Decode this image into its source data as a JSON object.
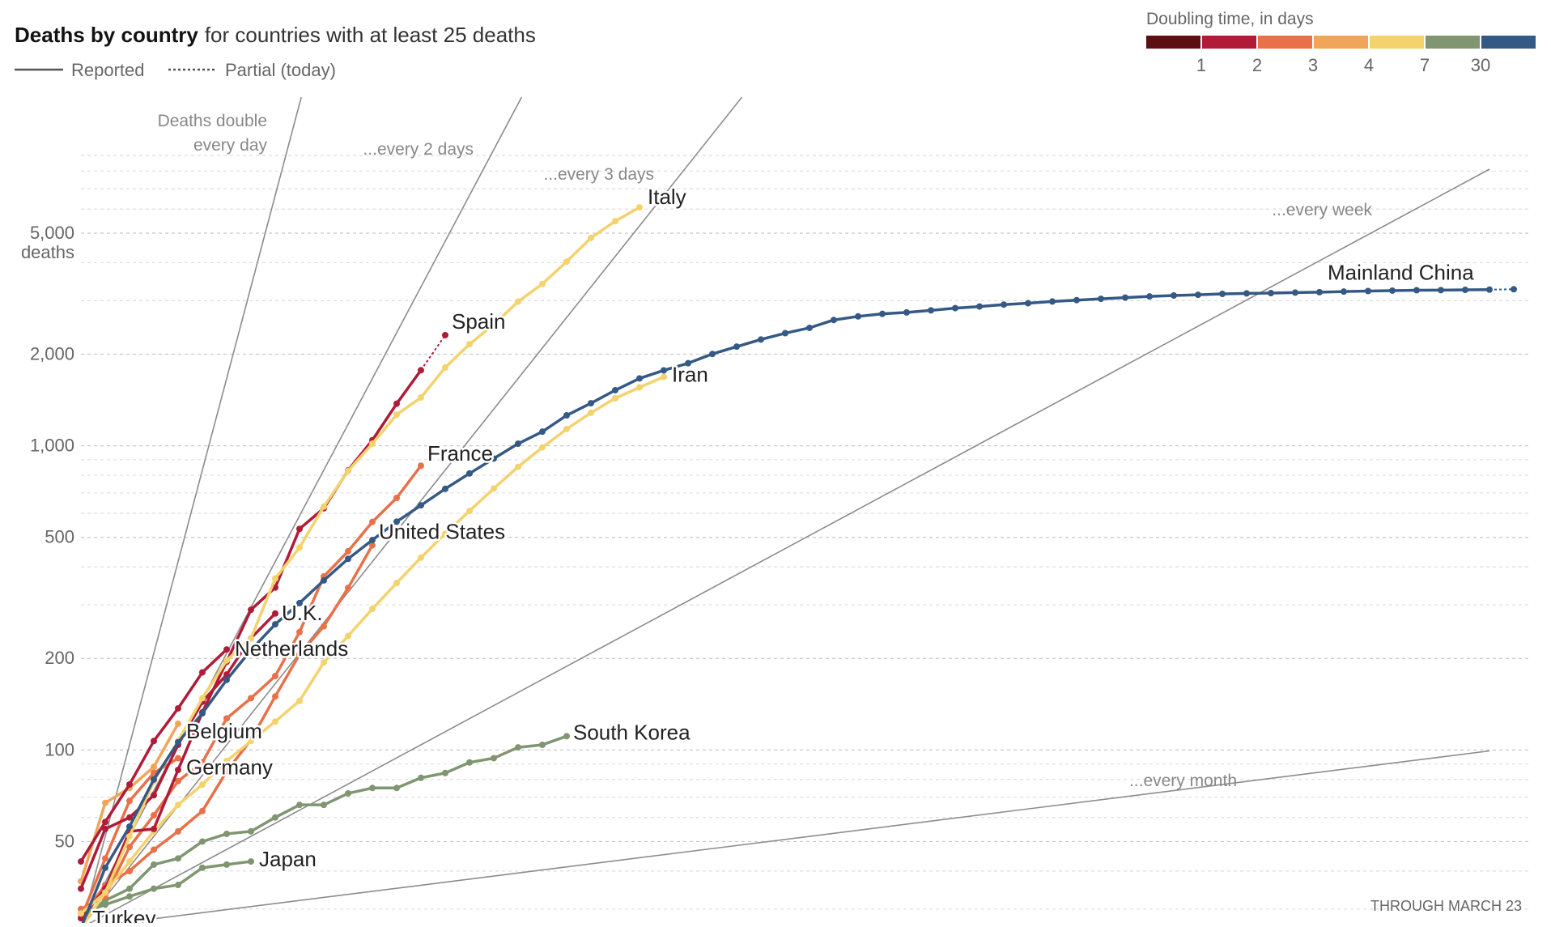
{
  "chart_data": {
    "type": "line",
    "title": "Deaths by country",
    "subtitle": "for countries with at least 25 deaths",
    "xlabel": "",
    "ylabel": "deaths",
    "y_scale": "log",
    "ylim": [
      27,
      14000
    ],
    "x_range_days": [
      0,
      58
    ],
    "grid": true,
    "legend": {
      "line_styles": [
        {
          "label": "Reported",
          "style": "solid"
        },
        {
          "label": "Partial (today)",
          "style": "dotted"
        }
      ],
      "color_scale": {
        "title": "Doubling time, in days",
        "colors": [
          "#5c0e12",
          "#b01c38",
          "#e8714a",
          "#f1a558",
          "#f4d26d",
          "#7f9671",
          "#355985"
        ],
        "tick_labels": [
          "1",
          "2",
          "3",
          "4",
          "7",
          "30"
        ]
      },
      "placement": "top"
    },
    "y_ticks": [
      {
        "value": 50,
        "label": "50"
      },
      {
        "value": 100,
        "label": "100"
      },
      {
        "value": 200,
        "label": "200"
      },
      {
        "value": 500,
        "label": "500"
      },
      {
        "value": 1000,
        "label": "1,000"
      },
      {
        "value": 2000,
        "label": "2,000"
      },
      {
        "value": 5000,
        "label": "5,000"
      }
    ],
    "y_unit_label": "deaths",
    "reference_lines": [
      {
        "label": "Deaths double every day",
        "doubling_days": 1
      },
      {
        "label": "...every 2 days",
        "doubling_days": 2
      },
      {
        "label": "...every 3 days",
        "doubling_days": 3
      },
      {
        "label": "...every week",
        "doubling_days": 7
      },
      {
        "label": "...every month",
        "doubling_days": 30
      }
    ],
    "series": [
      {
        "name": "Mainland China",
        "color": "#355985",
        "partial_last": true,
        "values": [
          26,
          41,
          56,
          80,
          106,
          132,
          170,
          213,
          259,
          304,
          361,
          425,
          490,
          563,
          637,
          722,
          811,
          908,
          1016,
          1113,
          1259,
          1380,
          1523,
          1665,
          1770,
          1868,
          2004,
          2118,
          2236,
          2345,
          2442,
          2592,
          2663,
          2715,
          2744,
          2788,
          2835,
          2870,
          2912,
          2943,
          2981,
          3012,
          3042,
          3070,
          3097,
          3119,
          3136,
          3158,
          3169,
          3176,
          3189,
          3199,
          3213,
          3226,
          3237,
          3245,
          3249,
          3255,
          3261,
          3270
        ]
      },
      {
        "name": "Italy",
        "color": "#f4d26d",
        "values": [
          29,
          34,
          52,
          79,
          107,
          148,
          197,
          233,
          366,
          463,
          631,
          827,
          1016,
          1266,
          1441,
          1809,
          2158,
          2503,
          2978,
          3405,
          4032,
          4825,
          5476,
          6077
        ]
      },
      {
        "name": "Iran",
        "color": "#f4d26d",
        "values": [
          26,
          34,
          43,
          54,
          66,
          77,
          92,
          107,
          124,
          145,
          194,
          237,
          291,
          354,
          429,
          514,
          611,
          724,
          853,
          988,
          1135,
          1284,
          1433,
          1556,
          1685
        ]
      },
      {
        "name": "Spain",
        "color": "#b01c38",
        "partial_last": true,
        "values": [
          28,
          35,
          54,
          55,
          86,
          133,
          195,
          289,
          342,
          533,
          623,
          830,
          1043,
          1375,
          1772,
          2311
        ]
      },
      {
        "name": "France",
        "color": "#e8714a",
        "values": [
          30,
          33,
          48,
          61,
          79,
          91,
          127,
          148,
          175,
          244,
          372,
          450,
          562,
          674,
          860
        ]
      },
      {
        "name": "United States",
        "color": "#e8714a",
        "values": [
          28,
          36,
          40,
          47,
          54,
          63,
          85,
          108,
          150,
          206,
          255,
          341,
          471
        ]
      },
      {
        "name": "U.K.",
        "color": "#b01c38",
        "values": [
          35,
          55,
          60,
          71,
          104,
          144,
          177,
          233,
          281
        ]
      },
      {
        "name": "Netherlands",
        "color": "#b01c38",
        "values": [
          43,
          58,
          77,
          107,
          137,
          180,
          214
        ]
      },
      {
        "name": "Belgium",
        "color": "#f1a558",
        "values": [
          37,
          67,
          75,
          88,
          122
        ]
      },
      {
        "name": "Germany",
        "color": "#e8714a",
        "values": [
          28,
          44,
          68,
          84,
          94
        ]
      },
      {
        "name": "South Korea",
        "color": "#7f9671",
        "values": [
          28,
          32,
          35,
          42,
          44,
          50,
          53,
          54,
          60,
          66,
          66,
          72,
          75,
          75,
          81,
          84,
          91,
          94,
          102,
          104,
          111
        ]
      },
      {
        "name": "Japan",
        "color": "#7f9671",
        "values": [
          29,
          31,
          33,
          35,
          36,
          41,
          42,
          43
        ]
      },
      {
        "name": "Turkey",
        "color": "#f4d26d",
        "values": [
          30
        ]
      }
    ],
    "annotations": [
      "THROUGH MARCH 23"
    ]
  }
}
